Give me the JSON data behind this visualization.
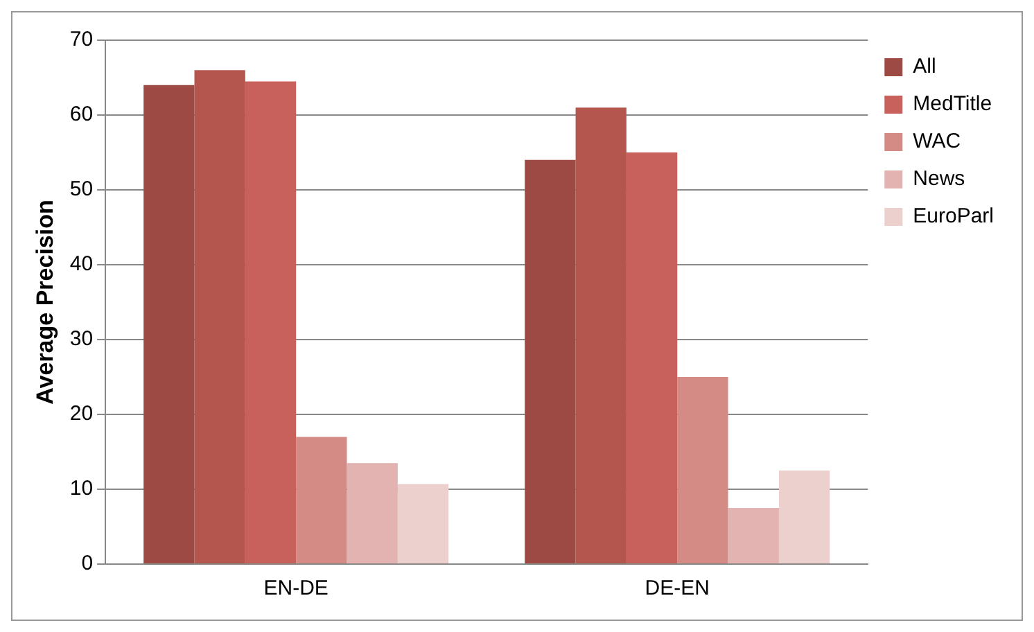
{
  "chart_data": {
    "type": "bar",
    "ylabel": "Average Precision",
    "categories": [
      "EN-DE",
      "DE-EN"
    ],
    "series": [
      {
        "name": "All",
        "color": "#9e4a44",
        "values": [
          64,
          54
        ]
      },
      {
        "color": "#b5564e",
        "values": [
          66,
          61
        ]
      },
      {
        "name": "MedTitle",
        "color": "#c8615b",
        "values": [
          64.5,
          55
        ]
      },
      {
        "name": "WAC",
        "color": "#d48a85",
        "values": [
          17,
          25
        ]
      },
      {
        "name": "News",
        "color": "#e2b3b0",
        "values": [
          13.5,
          7.5
        ]
      },
      {
        "name": "EuroParl",
        "color": "#ecd0ce",
        "values": [
          10.7,
          12.5
        ]
      }
    ],
    "ylim": [
      0,
      70
    ],
    "yticks": [
      0,
      10,
      20,
      30,
      40,
      50,
      60,
      70
    ],
    "grid": "y",
    "legend": "top right"
  }
}
